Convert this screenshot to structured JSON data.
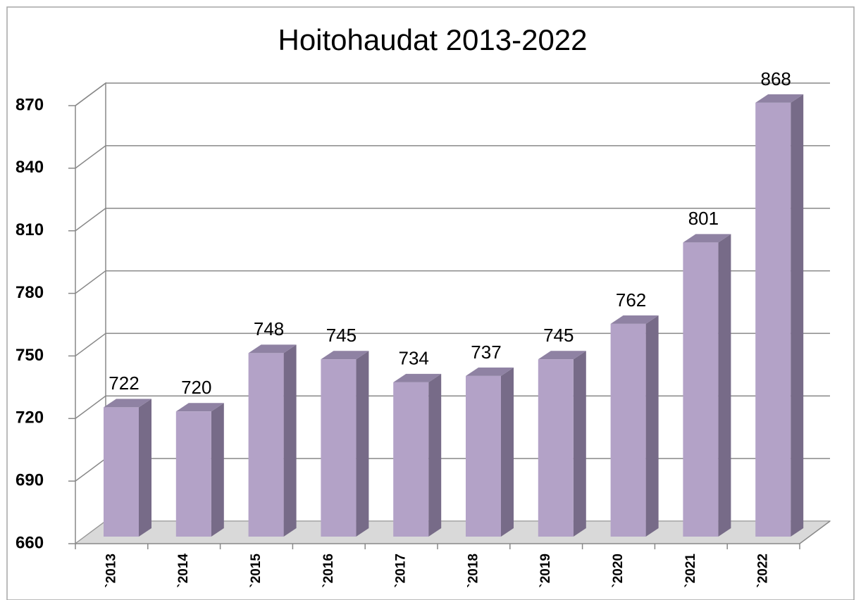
{
  "chart_data": {
    "type": "bar3d",
    "title": "Hoitohaudat 2013-2022",
    "categories": [
      "`2013",
      "`2014",
      "`2015",
      "`2016",
      "`2017",
      "`2018",
      "`2019",
      "`2020",
      "`2021",
      "`2022"
    ],
    "values": [
      722,
      720,
      748,
      745,
      734,
      737,
      745,
      762,
      801,
      868
    ],
    "color": "#b3a2c7",
    "ylim": [
      660,
      870
    ],
    "yticks": [
      660,
      690,
      720,
      750,
      780,
      810,
      840,
      870
    ],
    "grid": true
  }
}
